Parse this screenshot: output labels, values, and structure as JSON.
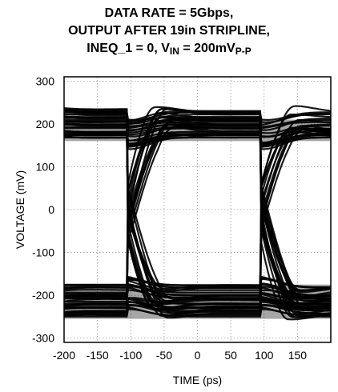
{
  "chart_data": {
    "type": "line",
    "title_lines": [
      "DATA RATE = 5Gbps,",
      "OUTPUT AFTER 19in STRIPLINE,"
    ],
    "title_line3": {
      "prefix": "INEQ_1 = 0, V",
      "sub1": "IN",
      "middle": " = 200mV",
      "sub2": "P-P"
    },
    "xlabel": "TIME (ps)",
    "ylabel": "VOLTAGE (mV)",
    "xlim": [
      -200,
      200
    ],
    "ylim": [
      -310,
      310
    ],
    "xticks": [
      -200,
      -150,
      -100,
      -50,
      0,
      50,
      100,
      150
    ],
    "yticks": [
      300,
      200,
      100,
      0,
      -100,
      -200,
      -300
    ],
    "grid": true,
    "description_values": {
      "bit_period_ps": 200,
      "high_level_mV": [
        160,
        230
      ],
      "low_level_mV": [
        -255,
        -175
      ],
      "crossing_times_ps": [
        -105,
        95
      ]
    }
  }
}
